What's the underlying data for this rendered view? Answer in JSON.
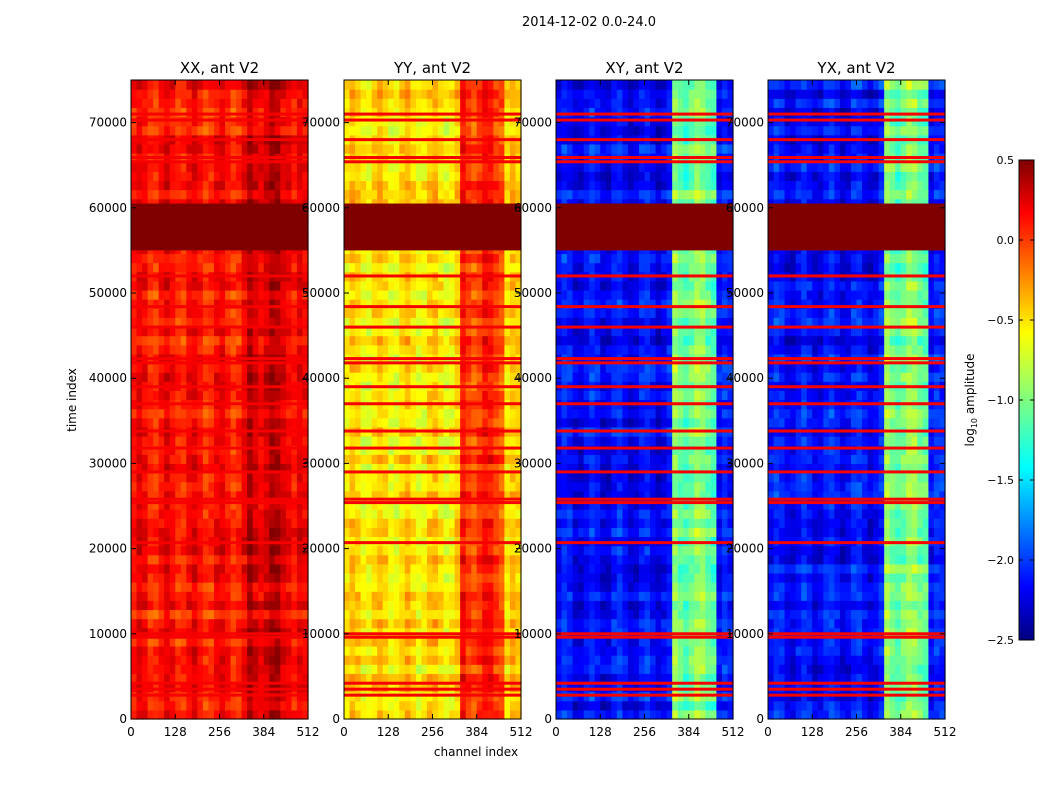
{
  "figure_title": "2014-12-02 0.0-24.0",
  "chart_data": {
    "type": "heatmap",
    "shared_xlabel": "channel index",
    "shared_ylabel": "time index",
    "xlim": [
      0,
      512
    ],
    "ylim": [
      0,
      75000
    ],
    "x_ticks": [
      0,
      128,
      256,
      384,
      512
    ],
    "y_ticks": [
      0,
      10000,
      20000,
      30000,
      40000,
      50000,
      60000,
      70000
    ],
    "panels": [
      {
        "title": "XX, ant V2",
        "colormap": "jet",
        "base_level": 0.05,
        "bright_channel_range": [
          330,
          470
        ],
        "bright_level": 0.25
      },
      {
        "title": "YY, ant V2",
        "colormap": "jet",
        "base_level": -0.55,
        "bright_channel_range": [
          330,
          470
        ],
        "bright_level": 0.0
      },
      {
        "title": "XY, ant V2",
        "colormap": "jet",
        "base_level": -2.1,
        "bright_channel_range": [
          330,
          470
        ],
        "bright_level": -1.0
      },
      {
        "title": "YX, ant V2",
        "colormap": "jet",
        "base_level": -2.1,
        "bright_channel_range": [
          330,
          470
        ],
        "bright_level": -1.0
      }
    ],
    "saturated_time_band": [
      55000,
      60500
    ],
    "flagged_time_rows": [
      2800,
      3500,
      4200,
      9600,
      10000,
      20700,
      25400,
      25800,
      29000,
      31800,
      33800,
      37000,
      39000,
      41800,
      42300,
      46000,
      48400,
      52000,
      65400,
      65900,
      68000,
      70300,
      71000
    ],
    "colorbar": {
      "label": "log10 amplitude",
      "min": -2.5,
      "max": 0.5,
      "ticks": [
        0.5,
        0.0,
        -0.5,
        -1.0,
        -1.5,
        -2.0,
        -2.5
      ],
      "tick_labels": [
        "0.5",
        "0.0",
        "−0.5",
        "−1.0",
        "−1.5",
        "−2.0",
        "−2.5"
      ]
    }
  }
}
